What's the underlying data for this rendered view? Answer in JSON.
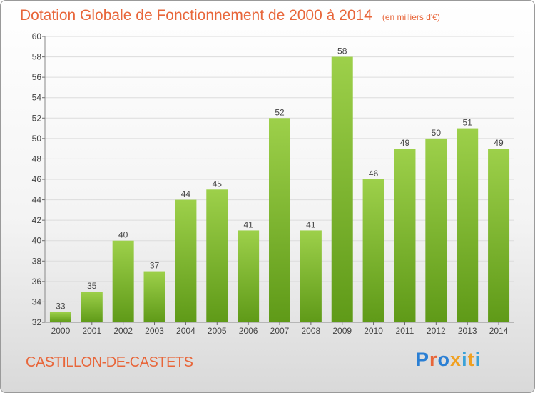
{
  "title": "Dotation Globale de Fonctionnement de 2000 à 2014",
  "subtitle": "(en milliers d'€)",
  "place": "CASTILLON-DE-CASTETS",
  "logo": "Proxiti",
  "colors": {
    "title": "#e8663a",
    "bar_light": "#9dd04a",
    "bar_dark": "#5f9a18",
    "logo": [
      "#2a7fd4",
      "#e8663a",
      "#2a7fd4",
      "#f0a020",
      "#3aa2d8",
      "#f0a020",
      "#3aa2d8"
    ]
  },
  "chart_data": {
    "type": "bar",
    "categories": [
      "2000",
      "2001",
      "2002",
      "2003",
      "2004",
      "2005",
      "2006",
      "2007",
      "2008",
      "2009",
      "2010",
      "2011",
      "2012",
      "2013",
      "2014"
    ],
    "values": [
      33,
      35,
      40,
      37,
      44,
      45,
      41,
      52,
      41,
      58,
      46,
      49,
      50,
      51,
      49
    ],
    "ylim": [
      32,
      60
    ],
    "yticks": [
      32,
      34,
      36,
      38,
      40,
      42,
      44,
      46,
      48,
      50,
      52,
      54,
      56,
      58,
      60
    ],
    "grid": true,
    "xlabel": "",
    "ylabel": ""
  }
}
